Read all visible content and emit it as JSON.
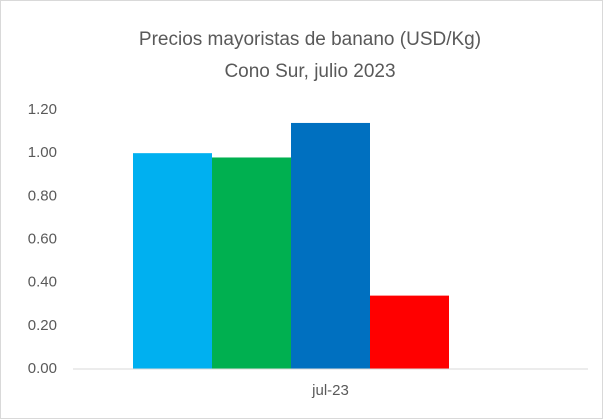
{
  "chart_data": {
    "type": "bar",
    "title": "Precios mayoristas de banano (USD/Kg)",
    "subtitle": "Cono Sur, julio 2023",
    "categories": [
      "jul-23"
    ],
    "series": [
      {
        "color": "#00b0f0",
        "values": [
          1.0
        ]
      },
      {
        "color": "#00b050",
        "values": [
          0.98
        ]
      },
      {
        "color": "#0070c0",
        "values": [
          1.14
        ]
      },
      {
        "color": "#ff0000",
        "values": [
          0.34
        ]
      },
      {
        "values": [
          null
        ]
      }
    ],
    "ylim": [
      0,
      1.2
    ],
    "yticks": [
      {
        "value": 0,
        "label": "0.00"
      },
      {
        "value": 0.2,
        "label": "0.20"
      },
      {
        "value": 0.4,
        "label": "0.40"
      },
      {
        "value": 0.6,
        "label": "0.60"
      },
      {
        "value": 0.8,
        "label": "0.80"
      },
      {
        "value": 1.0,
        "label": "1.00"
      },
      {
        "value": 1.2,
        "label": "1.20"
      }
    ],
    "grid": false
  }
}
